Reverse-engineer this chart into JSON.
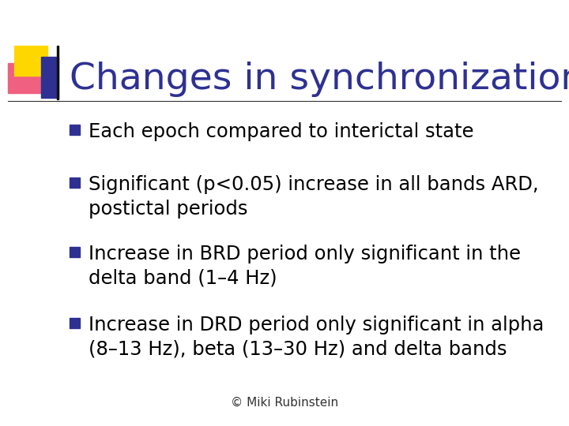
{
  "title": "Changes in synchronization",
  "title_color": "#2E3192",
  "title_fontsize": 34,
  "background_color": "#FFFFFF",
  "bullet_color": "#2E3192",
  "bullet_points": [
    "Each epoch compared to interictal state",
    "Significant (p<0.05) increase in all bands ARD,\npostictal periods",
    "Increase in BRD period only significant in the\ndelta band (1–4 Hz)",
    "Increase in DRD period only significant in alpha\n(8–13 Hz), beta (13–30 Hz) and delta bands"
  ],
  "text_color": "#000000",
  "text_fontsize": 17.5,
  "footer_text": "© Miki Rubinstein",
  "footer_fontsize": 11,
  "footer_color": "#333333",
  "line_color": "#333333",
  "logo_yellow": "#FFD700",
  "logo_red": "#F06080",
  "logo_blue": "#2E3192",
  "logo_blue_light": "#6080C8"
}
